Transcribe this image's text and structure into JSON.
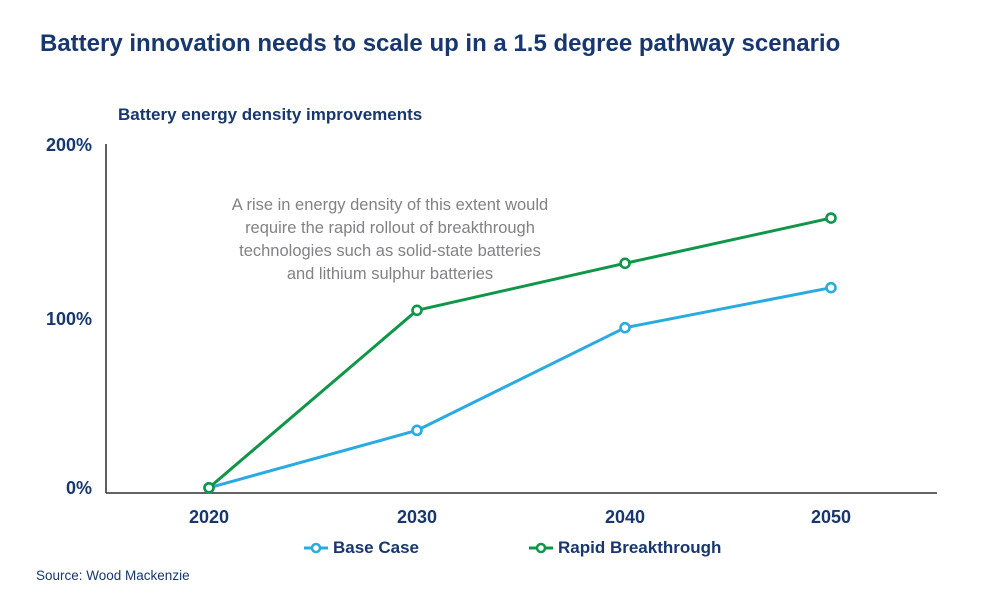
{
  "title": "Battery innovation needs to scale up in a 1.5 degree pathway scenario",
  "subtitle": "Battery energy density improvements",
  "annotation": {
    "lines": [
      "A rise in energy density of this extent would",
      "require the rapid rollout of breakthrough",
      "technologies such as solid-state batteries",
      "and lithium sulphur batteries"
    ]
  },
  "source": "Source: Wood Mackenzie",
  "colors": {
    "navy_text": "#17376e",
    "annotation_gray": "#808285",
    "axis_line": "#4d4d4d",
    "base_case_blue": "#29abe2",
    "rapid_breakthrough_green": "#0f9648",
    "background": "#ffffff"
  },
  "legend": {
    "items": [
      {
        "label": "Base Case",
        "color": "#29abe2"
      },
      {
        "label": "Rapid Breakthrough",
        "color": "#0f9648"
      }
    ]
  },
  "chart_data": {
    "type": "line",
    "title": "Battery energy density improvements",
    "categories": [
      "2020",
      "2030",
      "2040",
      "2050"
    ],
    "x": [
      2020,
      2030,
      2040,
      2050
    ],
    "series": [
      {
        "name": "Base Case",
        "color": "#29abe2",
        "values": [
          3,
          36,
          95,
          118
        ]
      },
      {
        "name": "Rapid Breakthrough",
        "color": "#0f9648",
        "values": [
          3,
          105,
          132,
          158
        ]
      }
    ],
    "ylabel": "",
    "xlabel": "",
    "ylim": [
      0,
      200
    ],
    "y_ticks": [
      "0%",
      "100%",
      "200%"
    ],
    "y_tick_values": [
      0,
      100,
      200
    ],
    "grid": false,
    "marker": "open-circle",
    "legend_position": "bottom"
  }
}
